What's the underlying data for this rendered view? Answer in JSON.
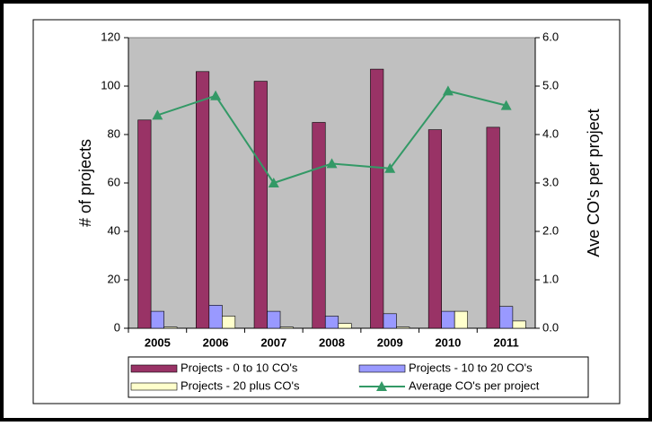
{
  "chart_data": {
    "type": "bar",
    "categories": [
      "2005",
      "2006",
      "2007",
      "2008",
      "2009",
      "2010",
      "2011"
    ],
    "series": [
      {
        "name": "Projects - 0 to 10 CO's",
        "color": "#993366",
        "values": [
          86,
          106,
          102,
          85,
          107,
          82,
          83
        ]
      },
      {
        "name": "Projects - 10 to 20 CO's",
        "color": "#9999ff",
        "values": [
          7,
          9.5,
          7,
          5,
          6,
          7,
          9
        ]
      },
      {
        "name": "Projects - 20 plus CO's",
        "color": "#ffffcc",
        "values": [
          0.5,
          5,
          0.5,
          2,
          0.5,
          7,
          3
        ]
      },
      {
        "name": "Average CO's per project",
        "color": "#339966",
        "type": "line",
        "axis": "y2",
        "values": [
          4.4,
          4.8,
          3.0,
          3.4,
          3.3,
          4.9,
          4.6
        ]
      }
    ],
    "ylabel": "# of projects",
    "y2label": "Ave CO's per project",
    "ylim": [
      0,
      120
    ],
    "yticks": [
      0,
      20,
      40,
      60,
      80,
      100,
      120
    ],
    "y2lim": [
      0,
      6
    ],
    "y2ticks": [
      {
        "value": 0,
        "label": "0.0"
      },
      {
        "value": 1,
        "label": "1.0"
      },
      {
        "value": 2,
        "label": "2.0"
      },
      {
        "value": 3,
        "label": "3.0"
      },
      {
        "value": 4,
        "label": "4.0"
      },
      {
        "value": 5,
        "label": "5.0"
      },
      {
        "value": 6,
        "label": "6.0"
      }
    ],
    "plot_background": "#c0c0c0",
    "legend": "bottom"
  }
}
